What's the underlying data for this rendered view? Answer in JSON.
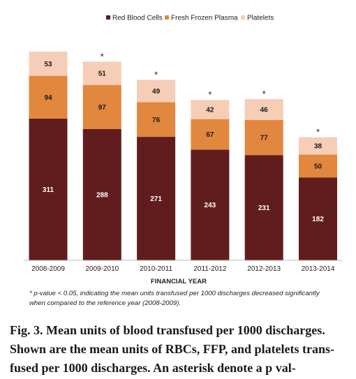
{
  "chart_data": {
    "type": "bar",
    "stacked": true,
    "categories": [
      "2008-2009",
      "2009-2010",
      "2010-2011",
      "2011-2012",
      "2012-2013",
      "2013-2014"
    ],
    "series": [
      {
        "name": "Red Blood Cells",
        "color": "#611d1d",
        "label_color": "#ffffff",
        "values": [
          311,
          288,
          271,
          243,
          231,
          182
        ]
      },
      {
        "name": "Fresh Frozen Plasma",
        "color": "#e2873e",
        "label_color": "#1a1a1a",
        "values": [
          94,
          97,
          76,
          67,
          77,
          50
        ]
      },
      {
        "name": "Platelets",
        "color": "#f6cdb6",
        "label_color": "#1a1a1a",
        "values": [
          53,
          51,
          49,
          42,
          46,
          38
        ]
      }
    ],
    "significance_marker": "*",
    "significant": [
      false,
      true,
      true,
      true,
      true,
      true
    ],
    "xlabel": "FINANCIAL YEAR",
    "ylabel": "",
    "ylim": [
      0,
      458
    ],
    "legend_position": "top-center",
    "grid": false
  },
  "footnote": "* p-value < 0.05, indicating the mean units transfused per 1000 discharges decreased significantly when compared to the reference year (2008-2009).",
  "caption": {
    "lines": [
      "Fig. 3. Mean units of blood transfused per 1000 discharges.",
      "Shown are the mean units of RBCs, FFP, and platelets trans-",
      "fused per 1000 discharges. An asterisk denote a p val-"
    ]
  }
}
